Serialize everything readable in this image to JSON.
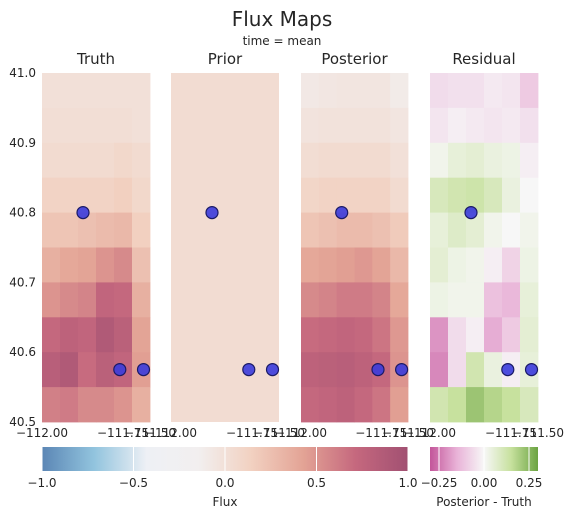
{
  "figure": {
    "title": "Flux Maps",
    "subtitle": "time = mean"
  },
  "colors": {
    "marker_fill": "#3b3bdc",
    "marker_edge": "#1a1a66",
    "flux_cmap": [
      "#5b86b5",
      "#92c4de",
      "#eef0f5",
      "#f2efef",
      "#f2d1c1",
      "#e3a395",
      "#c5687e",
      "#a15072"
    ],
    "residual_cmap": [
      "#c3569a",
      "#e9b3d8",
      "#f7f7f7",
      "#c7e19e",
      "#6ba341"
    ]
  },
  "chart_data": [
    {
      "type": "heatmap",
      "title": "Truth",
      "xlim": [
        -112.0,
        -111.5
      ],
      "ylim": [
        40.5,
        41.0
      ],
      "x_ticks": [
        "−112.00",
        "−111.75",
        "−111.50"
      ],
      "y_ticks": [
        "40.5",
        "40.6",
        "40.7",
        "40.8",
        "40.9",
        "41.0"
      ],
      "grid_rows_top_to_bottom": [
        [
          0.0,
          0.0,
          0.0,
          0.0,
          0.0,
          0.0
        ],
        [
          0.02,
          0.02,
          0.02,
          0.02,
          0.02,
          0.0
        ],
        [
          0.05,
          0.05,
          0.05,
          0.05,
          0.08,
          0.05
        ],
        [
          0.12,
          0.12,
          0.12,
          0.12,
          0.15,
          0.08
        ],
        [
          0.22,
          0.22,
          0.25,
          0.28,
          0.3,
          0.15
        ],
        [
          0.35,
          0.4,
          0.42,
          0.5,
          0.55,
          0.25
        ],
        [
          0.5,
          0.55,
          0.58,
          0.75,
          0.72,
          0.35
        ],
        [
          0.72,
          0.78,
          0.75,
          0.88,
          0.8,
          0.42
        ],
        [
          0.82,
          0.88,
          0.7,
          0.8,
          0.75,
          0.45
        ],
        [
          0.6,
          0.62,
          0.55,
          0.55,
          0.5,
          0.35
        ]
      ],
      "points": [
        {
          "lon": -111.81,
          "lat": 40.8
        },
        {
          "lon": -111.64,
          "lat": 40.575
        },
        {
          "lon": -111.53,
          "lat": 40.575
        }
      ]
    },
    {
      "type": "heatmap",
      "title": "Prior",
      "xlim": [
        -112.0,
        -111.5
      ],
      "ylim": [
        40.5,
        41.0
      ],
      "x_ticks": [
        "−112.00",
        "−111.75",
        "−111.50"
      ],
      "uniform_value": 0.04,
      "points": [
        {
          "lon": -111.81,
          "lat": 40.8
        },
        {
          "lon": -111.64,
          "lat": 40.575
        },
        {
          "lon": -111.53,
          "lat": 40.575
        }
      ]
    },
    {
      "type": "heatmap",
      "title": "Posterior",
      "xlim": [
        -112.0,
        -111.5
      ],
      "ylim": [
        40.5,
        41.0
      ],
      "x_ticks": [
        "−112.00",
        "−111.75",
        "−111.50"
      ],
      "grid_rows_top_to_bottom": [
        [
          -0.08,
          -0.06,
          -0.05,
          -0.05,
          -0.05,
          -0.1
        ],
        [
          -0.03,
          -0.02,
          -0.02,
          -0.02,
          -0.02,
          -0.05
        ],
        [
          0.03,
          0.05,
          0.05,
          0.05,
          0.05,
          0.0
        ],
        [
          0.1,
          0.12,
          0.12,
          0.12,
          0.12,
          0.05
        ],
        [
          0.22,
          0.25,
          0.28,
          0.28,
          0.25,
          0.18
        ],
        [
          0.4,
          0.42,
          0.45,
          0.48,
          0.42,
          0.3
        ],
        [
          0.55,
          0.58,
          0.62,
          0.62,
          0.58,
          0.4
        ],
        [
          0.7,
          0.72,
          0.75,
          0.72,
          0.65,
          0.48
        ],
        [
          0.78,
          0.8,
          0.82,
          0.78,
          0.72,
          0.5
        ],
        [
          0.72,
          0.75,
          0.78,
          0.72,
          0.65,
          0.45
        ]
      ],
      "points": [
        {
          "lon": -111.81,
          "lat": 40.8
        },
        {
          "lon": -111.64,
          "lat": 40.575
        },
        {
          "lon": -111.53,
          "lat": 40.575
        }
      ]
    },
    {
      "type": "heatmap",
      "title": "Residual",
      "xlim": [
        -112.0,
        -111.5
      ],
      "ylim": [
        40.5,
        41.0
      ],
      "x_ticks": [
        "−112.00",
        "−111.75",
        "−111.50"
      ],
      "grid_rows_top_to_bottom": [
        [
          -0.06,
          -0.05,
          -0.05,
          -0.03,
          -0.04,
          -0.1
        ],
        [
          -0.04,
          -0.02,
          -0.03,
          -0.04,
          -0.03,
          -0.05
        ],
        [
          0.02,
          0.05,
          0.06,
          0.04,
          0.03,
          -0.02
        ],
        [
          0.1,
          0.12,
          0.13,
          0.1,
          0.04,
          0.0
        ],
        [
          0.05,
          0.08,
          0.06,
          0.02,
          0.0,
          0.02
        ],
        [
          0.06,
          0.03,
          0.02,
          -0.02,
          -0.08,
          0.03
        ],
        [
          0.03,
          0.02,
          0.02,
          -0.12,
          -0.14,
          0.05
        ],
        [
          -0.2,
          -0.06,
          -0.02,
          -0.16,
          -0.1,
          0.06
        ],
        [
          -0.22,
          -0.06,
          0.12,
          0.04,
          -0.02,
          0.05
        ],
        [
          0.12,
          0.15,
          0.22,
          0.18,
          0.15,
          0.1
        ]
      ],
      "points": [
        {
          "lon": -111.81,
          "lat": 40.8
        },
        {
          "lon": -111.64,
          "lat": 40.575
        },
        {
          "lon": -111.53,
          "lat": 40.575
        }
      ]
    }
  ],
  "colorbars": [
    {
      "label": "Flux",
      "range": [
        -1.0,
        1.0
      ],
      "ticks": [
        -1.0,
        -0.5,
        0.0,
        0.5,
        1.0
      ],
      "tick_labels": [
        "−1.0",
        "−0.5",
        "0.0",
        "0.5",
        "1.0"
      ]
    },
    {
      "label": "Posterior - Truth",
      "range": [
        -0.3,
        0.3
      ],
      "ticks": [
        -0.25,
        0.0,
        0.25
      ],
      "tick_labels": [
        "−0.25",
        "0.00",
        "0.25"
      ]
    }
  ]
}
